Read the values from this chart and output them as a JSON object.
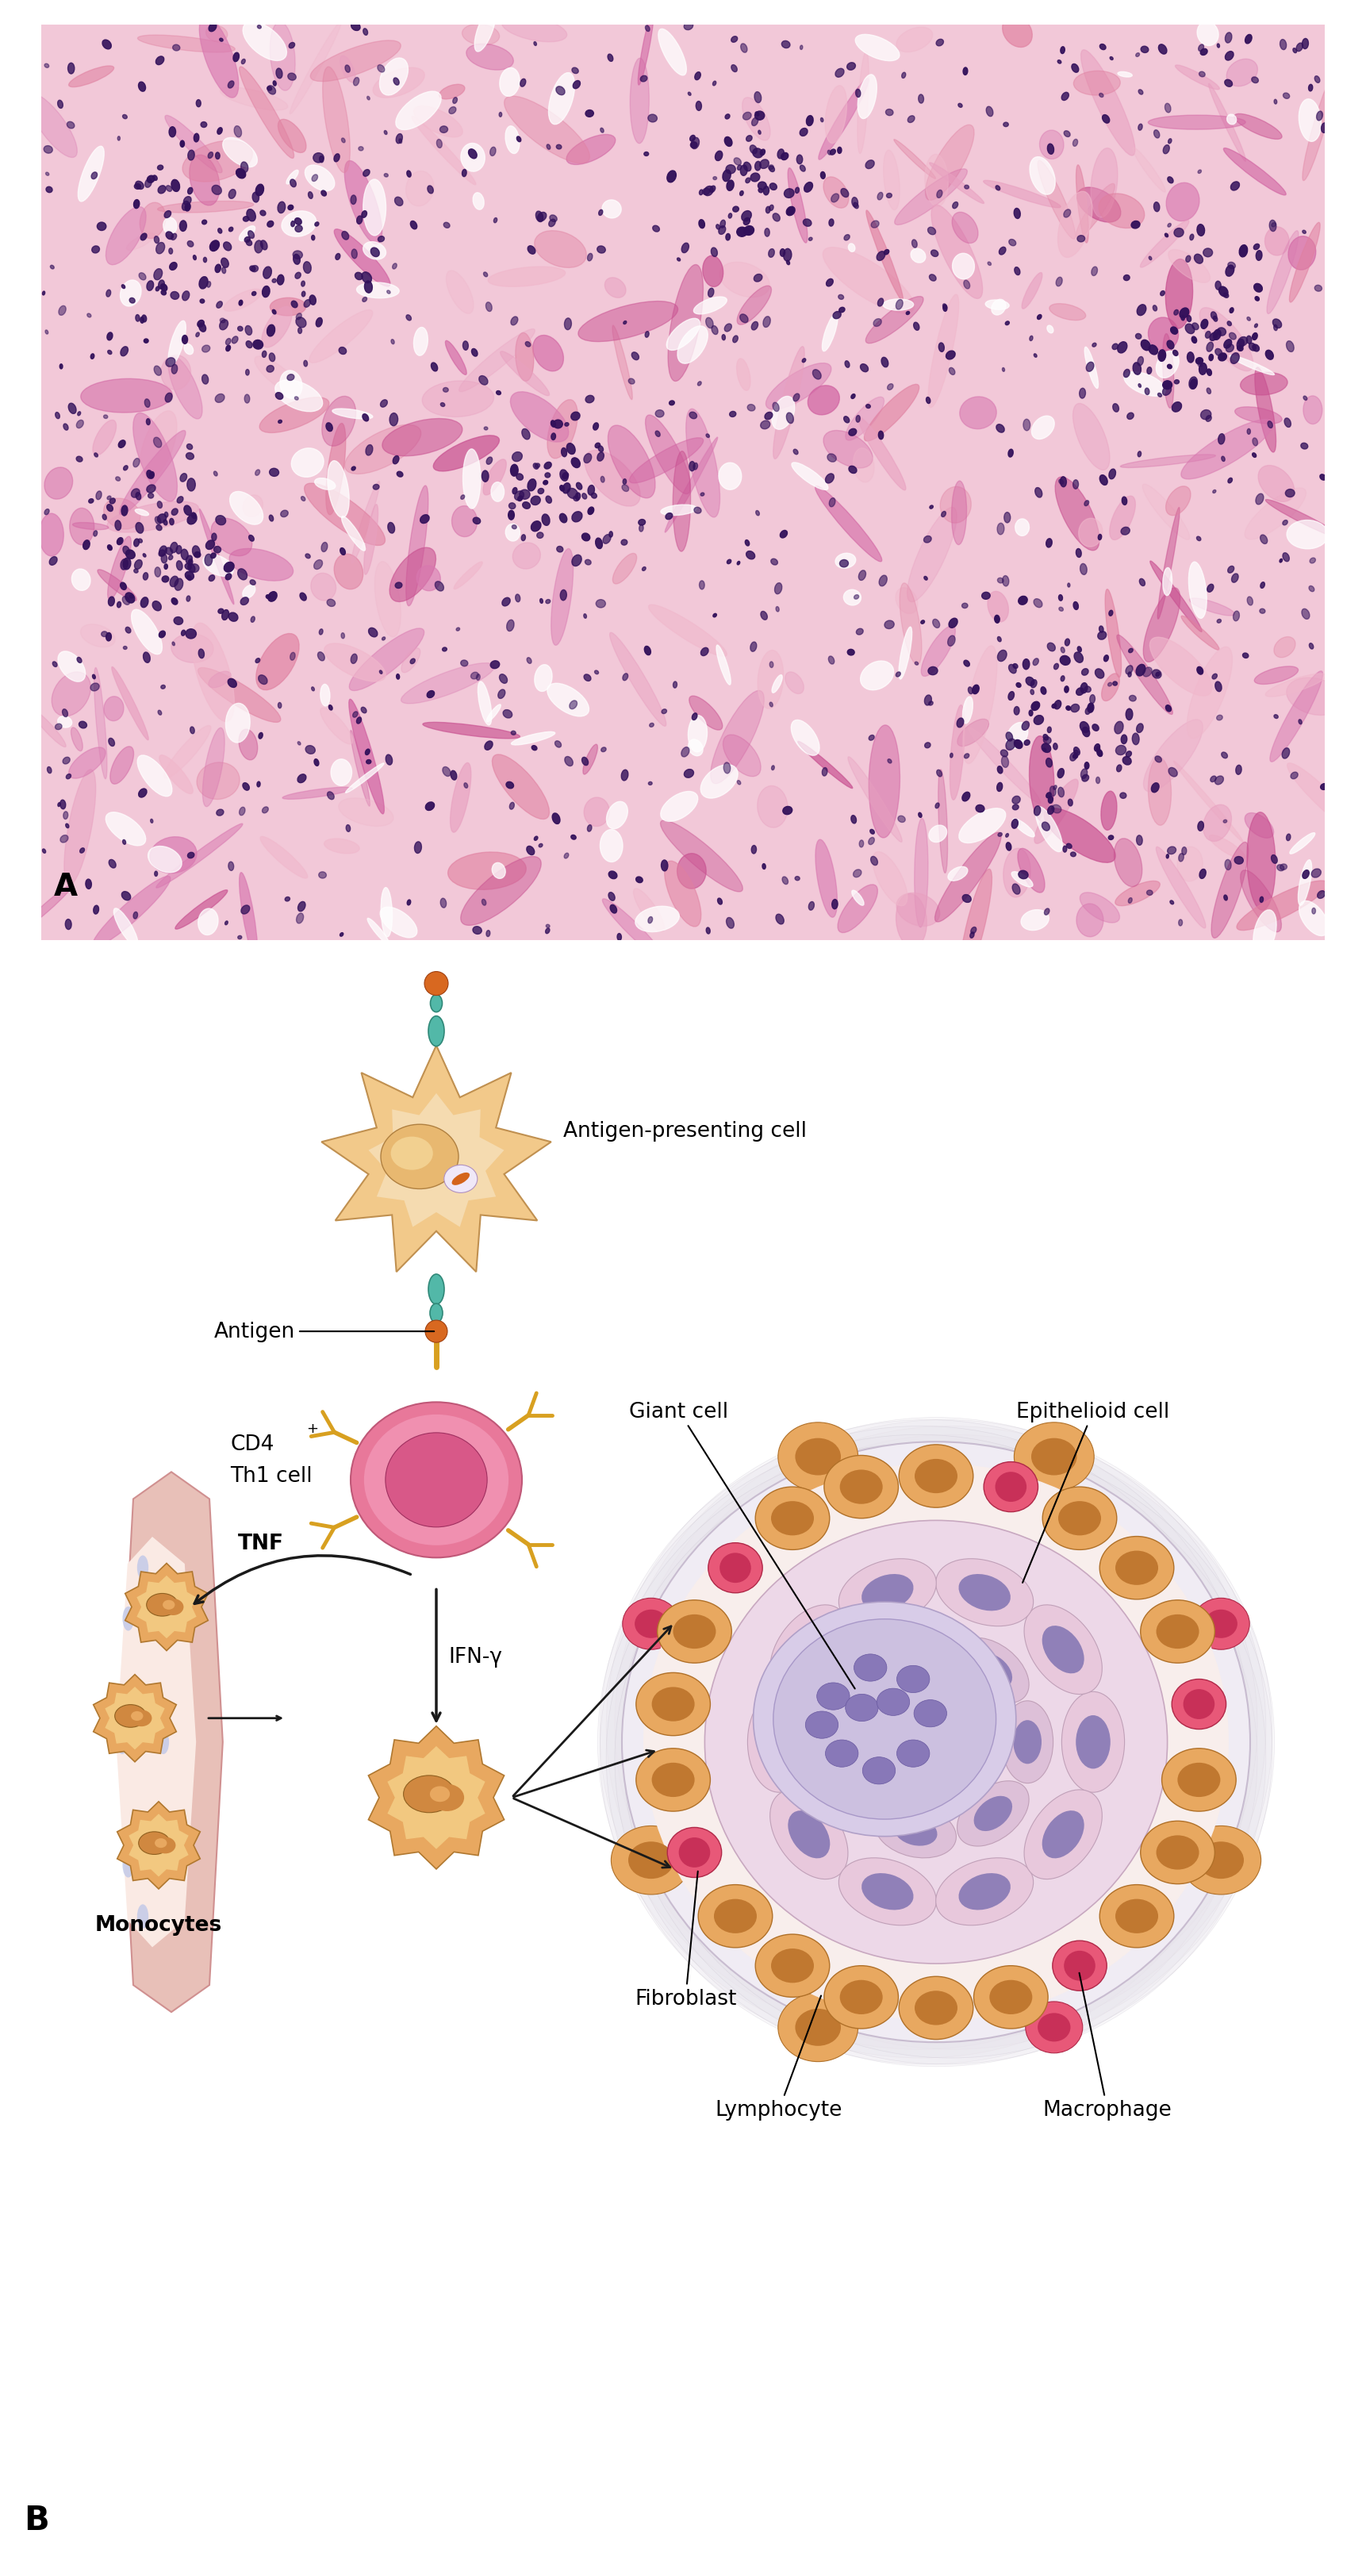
{
  "figure_width": 17.22,
  "figure_height": 32.48,
  "bg_color": "#ffffff",
  "panel_A_label": "A",
  "panel_B_label": "B",
  "label_antigen_presenting_cell": "Antigen-presenting cell",
  "label_antigen": "Antigen",
  "label_cd4": "CD4",
  "label_superscript_plus": "+",
  "label_th1": "Th1 cell",
  "label_tnf": "TNF",
  "label_ifn": "IFN-γ",
  "label_monocytes": "Monocytes",
  "label_fibroblast": "Fibroblast",
  "label_giant_cell": "Giant cell",
  "label_epithelioid": "Epithelioid cell",
  "label_lymphocyte": "Lymphocyte",
  "label_macrophage": "Macrophage",
  "color_apc_outer": "#f2c98a",
  "color_apc_inner": "#f5dbb0",
  "color_apc_nucleus": "#e8b870",
  "color_apc_nucleus_inner": "#f2d090",
  "color_apc_antigen": "#d4641a",
  "color_apc_antigen_vacuole": "#f0e8f8",
  "color_th1_outer": "#e8789a",
  "color_th1_inner": "#f090b0",
  "color_th1_nucleus": "#d85888",
  "color_receptor_teal": "#52b8a8",
  "color_antigen_orange": "#d86820",
  "color_tcr_gold": "#d8a020",
  "color_monocyte_body": "#e8a860",
  "color_monocyte_nucleus": "#d08840",
  "color_vessel_outer": "#e8c0b8",
  "color_vessel_inner": "#faeae4",
  "color_vessel_cells": "#c0c8e8",
  "color_granuloma_bg": "#f8f0f4",
  "color_gran_outer_fill": "#ede0ec",
  "color_gran_pink_zone": "#f0d8e8",
  "color_gran_mid_zone": "#e8d0e8",
  "color_gran_spiral": "#ddc8e0",
  "color_epithelioid_body": "#ddc0d8",
  "color_epithelioid_nucleus": "#9080b8",
  "color_lymphocyte_body": "#e85878",
  "color_lymphocyte_nucleus": "#c83058",
  "color_macrophage_body": "#e8a860",
  "color_macrophage_nucleus": "#c07830",
  "color_giant_body": "#c8b8d8",
  "color_giant_nucleus": "#8878b8",
  "color_arrow": "#1a1a1a",
  "histology_bg": "#f0c8d8",
  "histology_tissue": "#e090b0",
  "histology_nuclei": "#32105a"
}
